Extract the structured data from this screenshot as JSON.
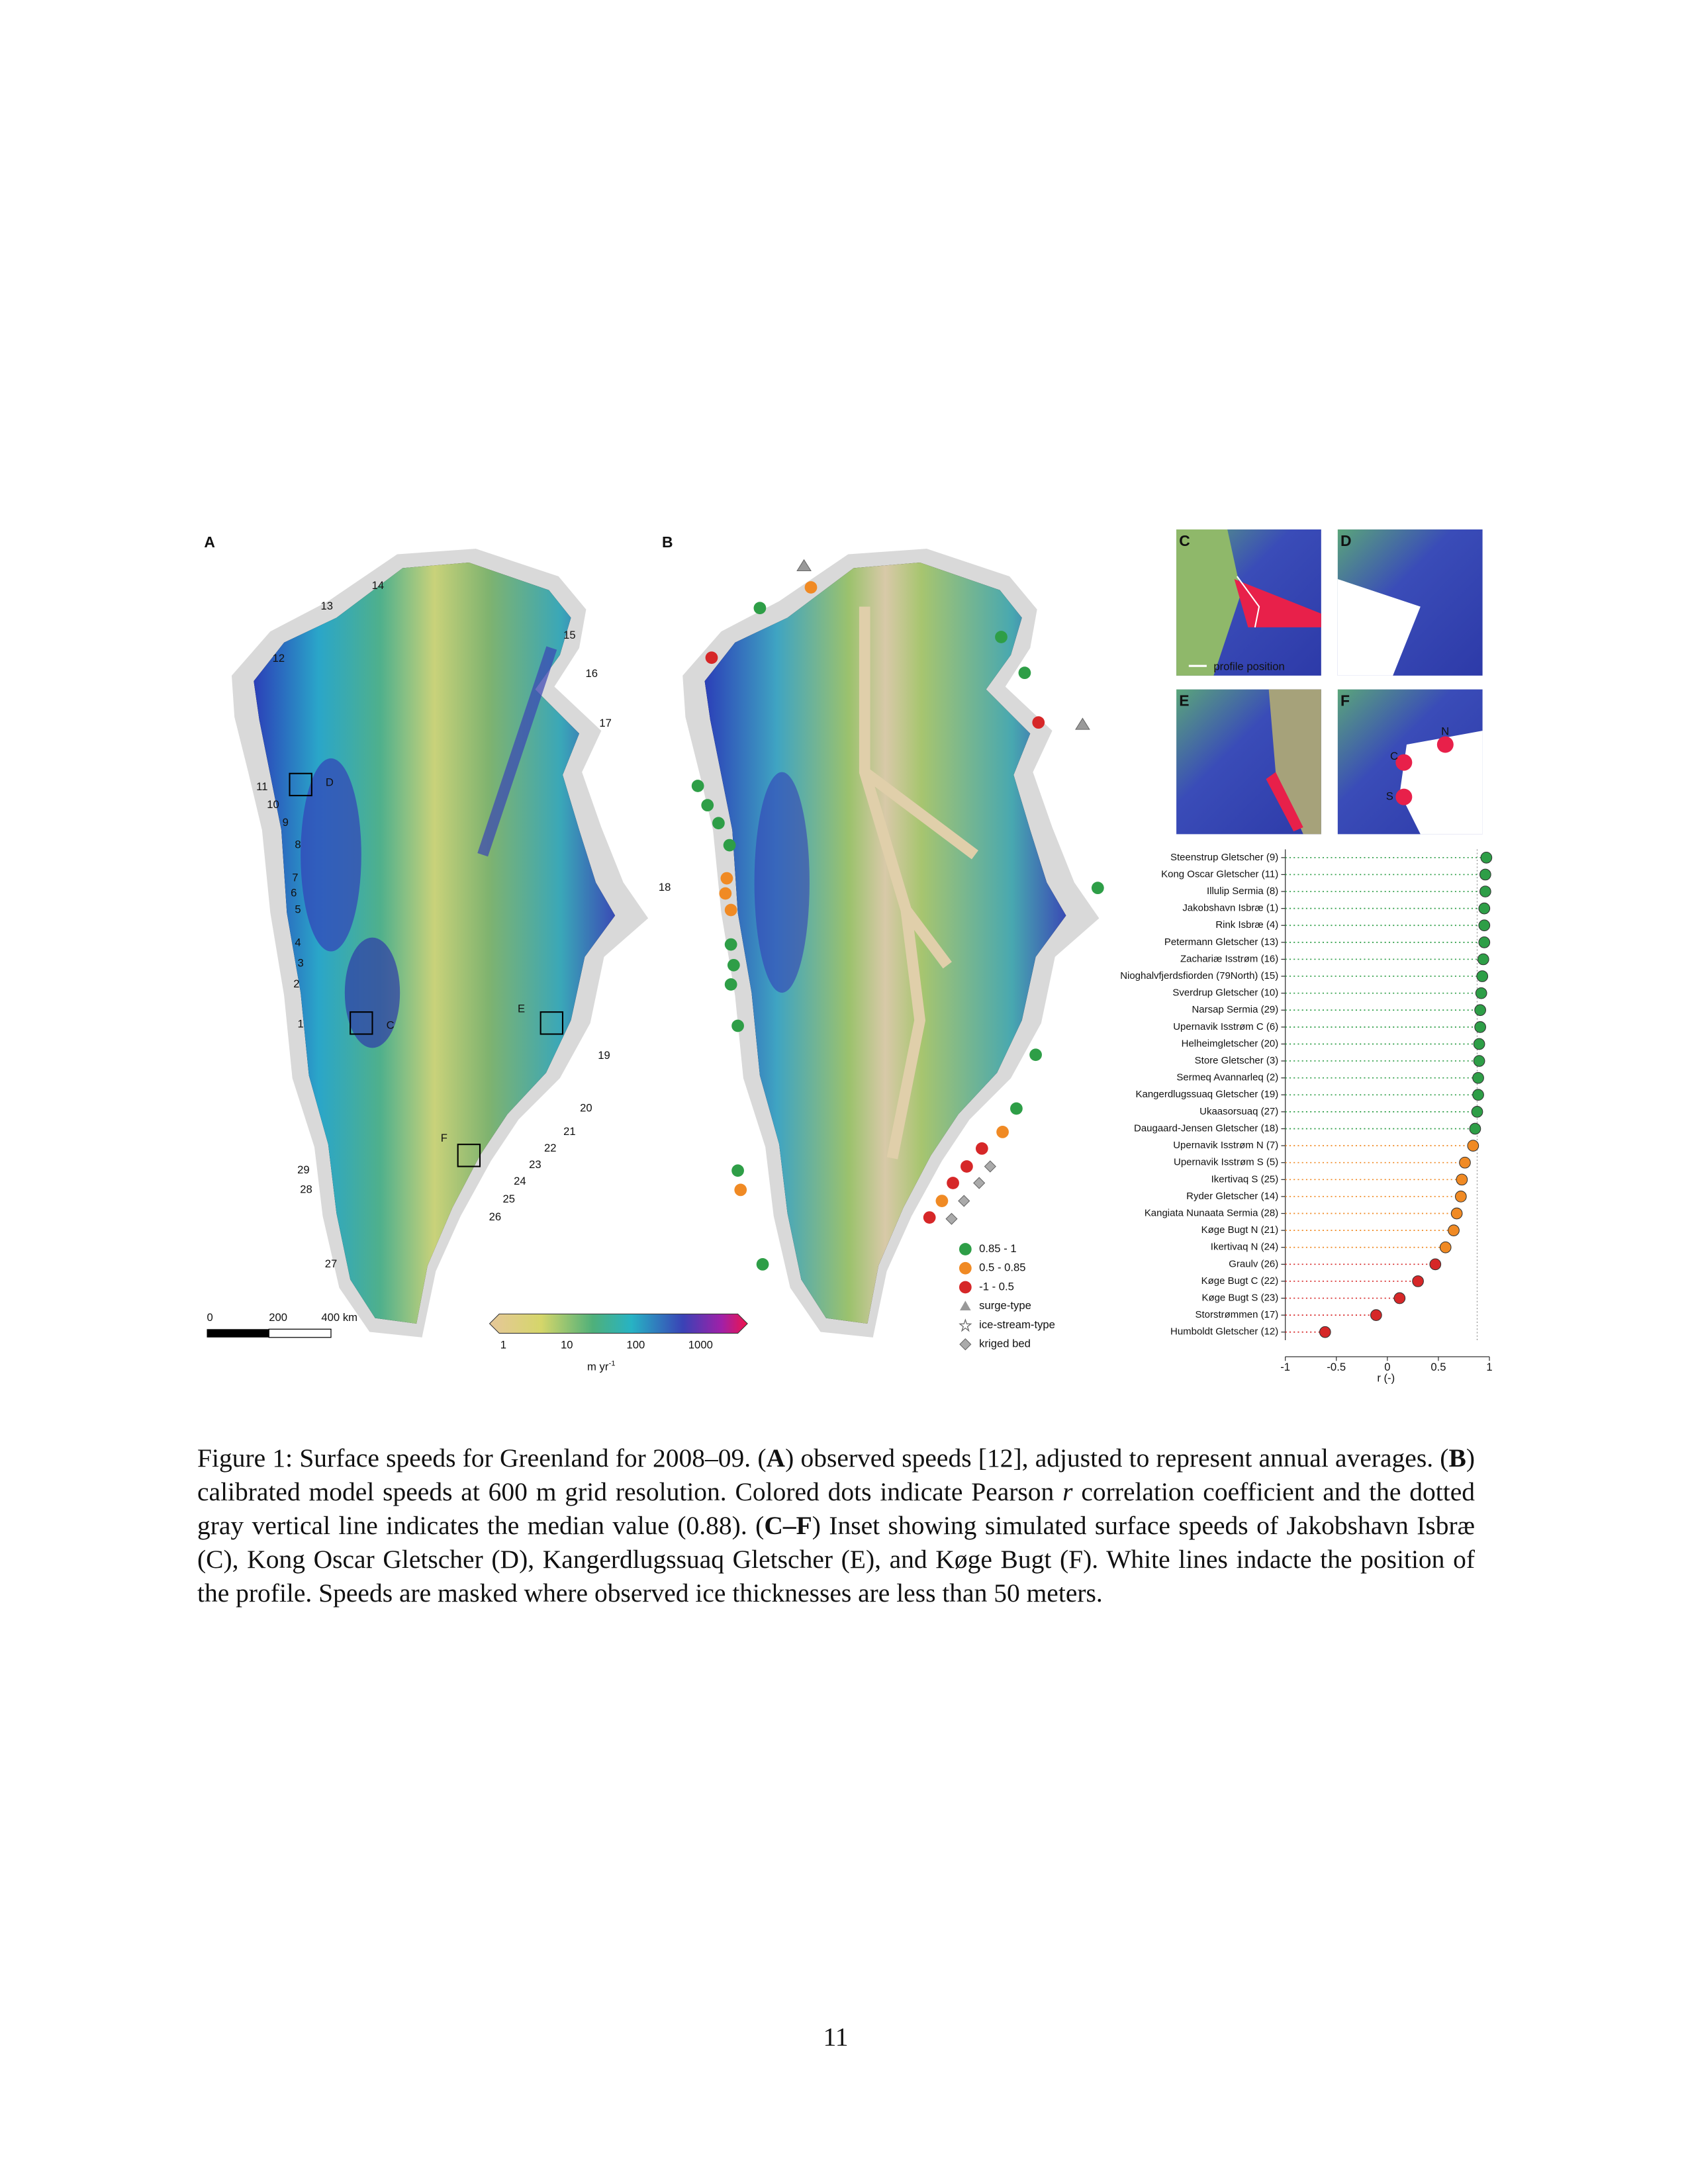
{
  "map_a": {
    "label": "A",
    "glacier_labels": [
      "14",
      "13",
      "15",
      "12",
      "16",
      "17",
      "11",
      "10",
      "9",
      "8",
      "7",
      "6",
      "5",
      "18",
      "4",
      "3",
      "2",
      "1",
      "19",
      "20",
      "21",
      "22",
      "23",
      "29",
      "24",
      "28",
      "25",
      "26",
      "27"
    ],
    "box_labels": [
      "D",
      "C",
      "E",
      "F"
    ],
    "scale_labels": [
      "0",
      "200",
      "400 km"
    ],
    "colorbar_ticks": [
      "1",
      "10",
      "100",
      "1000"
    ],
    "colorbar_unit": "m yr",
    "colorbar_unit_exponent": "-1"
  },
  "map_b": {
    "label": "B",
    "legend": [
      "0.85 - 1",
      "0.5 - 0.85",
      "-1 - 0.5",
      "surge-type",
      "ice-stream-type",
      "kriged bed"
    ]
  },
  "insets": {
    "labels": [
      "C",
      "D",
      "E",
      "F"
    ],
    "profile_note": "profile position",
    "f_labels": [
      "N",
      "C",
      "S"
    ]
  },
  "chart_data": {
    "type": "dot",
    "categories": [
      "Steenstrup Gletscher (9)",
      "Kong Oscar Gletscher (11)",
      "Illulip Sermia (8)",
      "Jakobshavn Isbræ (1)",
      "Rink Isbræ (4)",
      "Petermann Gletscher (13)",
      "Zachariæ Isstrøm (16)",
      "Nioghalvfjerdsfiorden (79North) (15)",
      "Sverdrup Gletscher (10)",
      "Narsap Sermia (29)",
      "Upernavik Isstrøm C (6)",
      "Helheimgletscher (20)",
      "Store Gletscher (3)",
      "Sermeq Avannarleq (2)",
      "Kangerdlugssuaq Gletscher (19)",
      "Ukaasorsuaq (27)",
      "Daugaard-Jensen Gletscher (18)",
      "Upernavik Isstrøm N (7)",
      "Upernavik Isstrøm S (5)",
      "Ikertivaq S (25)",
      "Ryder Gletscher (14)",
      "Kangiata Nunaata Sermia (28)",
      "Køge Bugt N (21)",
      "Ikertivaq N (24)",
      "Graulv (26)",
      "Køge Bugt C (22)",
      "Køge Bugt S (23)",
      "Storstrømmen (17)",
      "Humboldt Gletscher (12)"
    ],
    "values": [
      0.97,
      0.96,
      0.96,
      0.95,
      0.95,
      0.95,
      0.94,
      0.93,
      0.92,
      0.91,
      0.91,
      0.9,
      0.9,
      0.89,
      0.89,
      0.88,
      0.86,
      0.84,
      0.76,
      0.73,
      0.72,
      0.68,
      0.65,
      0.57,
      0.47,
      0.3,
      0.12,
      -0.11,
      -0.61
    ],
    "colors": [
      "#2e9e47",
      "#2e9e47",
      "#2e9e47",
      "#2e9e47",
      "#2e9e47",
      "#2e9e47",
      "#2e9e47",
      "#2e9e47",
      "#2e9e47",
      "#2e9e47",
      "#2e9e47",
      "#2e9e47",
      "#2e9e47",
      "#2e9e47",
      "#2e9e47",
      "#2e9e47",
      "#2e9e47",
      "#f08a24",
      "#f08a24",
      "#f08a24",
      "#f08a24",
      "#f08a24",
      "#f08a24",
      "#f08a24",
      "#d62728",
      "#d62728",
      "#d62728",
      "#d62728",
      "#d62728"
    ],
    "median": 0.88,
    "xlim": [
      -1,
      1
    ],
    "xticks": [
      -1,
      -0.5,
      0,
      0.5,
      1
    ],
    "xlabel": "r (-)"
  },
  "caption": {
    "parts": [
      "Figure 1: Surface speeds for Greenland for 2008–09. (",
      "A",
      ") observed speeds [12], adjusted to represent annual averages. (",
      "B",
      ") calibrated model speeds at 600 m grid resolution. Colored dots indicate Pearson ",
      "r",
      " correlation coefficient and the dotted gray vertical line indicates the median value (0.88). (",
      "C–F",
      ") Inset showing simulated surface speeds of Jakobshavn Isbræ (C), Kong Oscar Gletscher (D), Kangerdlugssuaq Gletscher (E), and Køge Bugt (F). White lines indacte the position of the profile.  Speeds are masked where observed ice thicknesses are less than 50 meters."
    ]
  },
  "page_number": "11"
}
